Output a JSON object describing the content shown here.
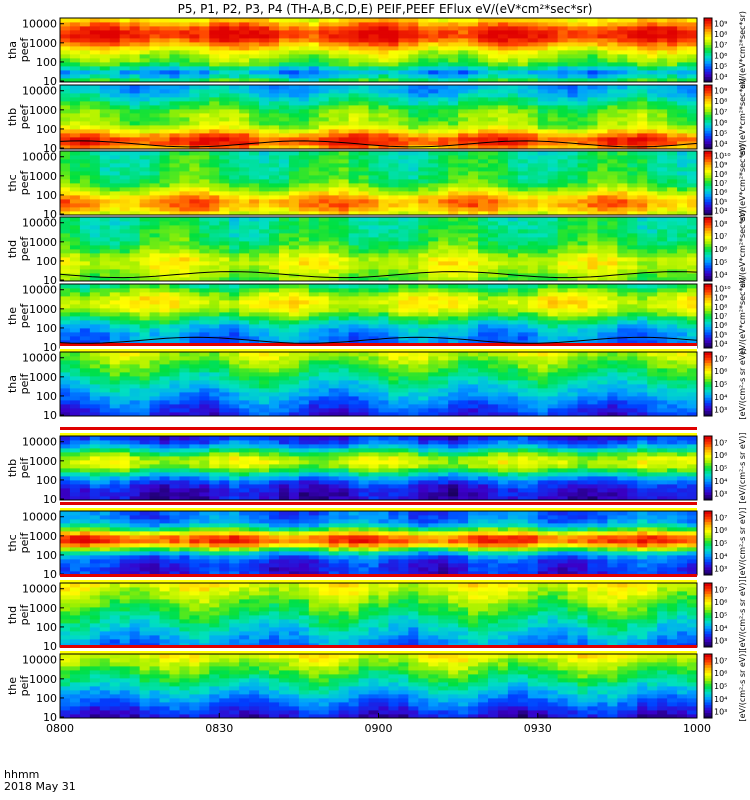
{
  "chart_data": {
    "type": "heatmap",
    "title": "P5, P1, P2, P3, P4 (TH-A,B,C,D,E) PEIF,PEEF EFlux eV/(eV*cm²*sec*sr)",
    "date_label": "2018 May 31",
    "time_label": "hhmm",
    "x_ticks": [
      "0800",
      "0830",
      "0900",
      "0930",
      "1000"
    ],
    "y_scale": "log",
    "y_ticks": [
      "10",
      "100",
      "1000",
      "10000"
    ],
    "colormap": [
      "#1a0060",
      "#3a00c8",
      "#0040ff",
      "#00a0ff",
      "#00e0c0",
      "#00e040",
      "#a0f000",
      "#ffff00",
      "#ffb000",
      "#ff4000",
      "#e00000"
    ],
    "panels": [
      {
        "name": "tha peef",
        "label_top": "tha",
        "label_bottom": "peef",
        "colorbar_ticks": [
          "10⁴",
          "10⁵",
          "10⁶",
          "10⁷",
          "10⁸",
          "10⁹"
        ],
        "colorbar_label": "eV/(eV*cm²*sec*sr)"
      },
      {
        "name": "thb peef",
        "label_top": "thb",
        "label_bottom": "peef",
        "colorbar_ticks": [
          "10⁴",
          "10⁵",
          "10⁶",
          "10⁷",
          "10⁸",
          "10⁹"
        ],
        "colorbar_label": "eV/(eV*cm²*sec*sr)"
      },
      {
        "name": "thc peef",
        "label_top": "thc",
        "label_bottom": "peef",
        "colorbar_ticks": [
          "10⁴",
          "10⁵",
          "10⁶",
          "10⁷",
          "10⁸",
          "10⁹",
          "10¹⁰"
        ],
        "colorbar_label": "eV/(eV*cm²*sec*sr)"
      },
      {
        "name": "thd peef",
        "label_top": "thd",
        "label_bottom": "peef",
        "colorbar_ticks": [
          "10⁴",
          "10⁵",
          "10⁶",
          "10⁷",
          "10⁸"
        ],
        "colorbar_label": "eV/(eV*cm²*sec*sr)"
      },
      {
        "name": "the peef",
        "label_top": "the",
        "label_bottom": "peef",
        "colorbar_ticks": [
          "10⁴",
          "10⁵",
          "10⁶",
          "10⁷",
          "10⁸",
          "10⁹",
          "10¹⁰"
        ],
        "colorbar_label": "eV/(eV*cm²*sec*sr)"
      },
      {
        "name": "tha peif",
        "label_top": "tha",
        "label_bottom": "peif",
        "colorbar_ticks": [
          "10³",
          "10⁴",
          "10⁵",
          "10⁶",
          "10⁷"
        ],
        "colorbar_label": "[eV/(cm²-s sr eV)]"
      },
      {
        "name": "thb peif",
        "label_top": "thb",
        "label_bottom": "peif",
        "colorbar_ticks": [
          "10³",
          "10⁴",
          "10⁵",
          "10⁶",
          "10⁷"
        ],
        "colorbar_label": "[eV/(cm²-s sr eV)]"
      },
      {
        "name": "thc peif",
        "label_top": "thc",
        "label_bottom": "peif",
        "colorbar_ticks": [
          "10³",
          "10⁴",
          "10⁵",
          "10⁶",
          "10⁷"
        ],
        "colorbar_label": "[eV/(cm²-s sr eV)]"
      },
      {
        "name": "thd peif",
        "label_top": "thd",
        "label_bottom": "peif",
        "colorbar_ticks": [
          "10³",
          "10⁴",
          "10⁵",
          "10⁶",
          "10⁷"
        ],
        "colorbar_label": "[eV/(cm²-s sr eV)]"
      },
      {
        "name": "the peif",
        "label_top": "the",
        "label_bottom": "peif",
        "colorbar_ticks": [
          "10³",
          "10⁴",
          "10⁵",
          "10⁶",
          "10⁷"
        ],
        "colorbar_label": "[eV/(cm²-s sr eV)]"
      }
    ]
  }
}
